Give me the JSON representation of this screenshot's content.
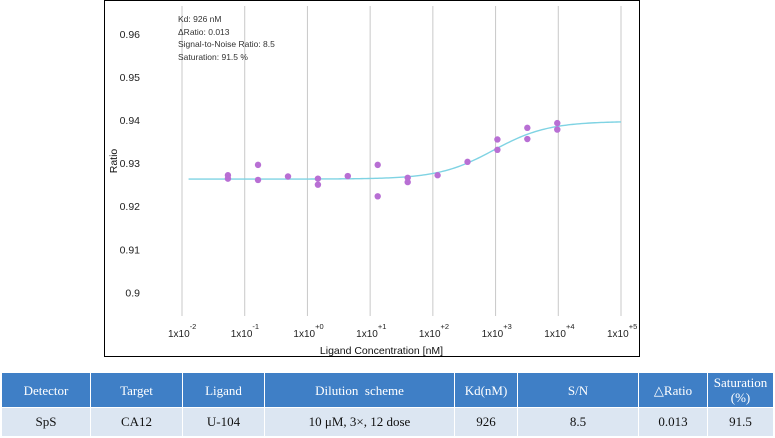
{
  "chart_data": {
    "type": "scatter",
    "xlabel": "Ligand Concentration [nM]",
    "ylabel": "Ratio",
    "x_scale": "log",
    "xlim": [
      0.01,
      100000
    ],
    "ylim": [
      0.8945,
      0.9665
    ],
    "x_ticks": [
      {
        "value": 0.01,
        "base": "1x10",
        "exp": "-2"
      },
      {
        "value": 0.1,
        "base": "1x10",
        "exp": "-1"
      },
      {
        "value": 1,
        "base": "1x10",
        "exp": "+0"
      },
      {
        "value": 10,
        "base": "1x10",
        "exp": "+1"
      },
      {
        "value": 100,
        "base": "1x10",
        "exp": "+2"
      },
      {
        "value": 1000,
        "base": "1x10",
        "exp": "+3"
      },
      {
        "value": 10000,
        "base": "1x10",
        "exp": "+4"
      },
      {
        "value": 100000,
        "base": "1x10",
        "exp": "+5"
      }
    ],
    "y_ticks": [
      "0.96",
      "0.95",
      "0.94",
      "0.93",
      "0.92",
      "0.91",
      "0.9"
    ],
    "grid": "vertical",
    "annotations": [
      "Kd: 926 nM",
      "ΔRatio: 0.013",
      "Signal-to-Noise Ratio: 8.5",
      "Saturation: 91.5 %"
    ],
    "fit_curve": {
      "bottom": 0.9263,
      "top": 0.9397,
      "kd": 926,
      "color": "#7fd3e3"
    },
    "point_color": "#b86fd4",
    "points": [
      {
        "x": 0.054,
        "y": 0.9272
      },
      {
        "x": 0.054,
        "y": 0.9264
      },
      {
        "x": 0.163,
        "y": 0.9296
      },
      {
        "x": 0.163,
        "y": 0.9261
      },
      {
        "x": 0.49,
        "y": 0.9269
      },
      {
        "x": 1.47,
        "y": 0.9264
      },
      {
        "x": 1.47,
        "y": 0.925
      },
      {
        "x": 4.4,
        "y": 0.927
      },
      {
        "x": 13.2,
        "y": 0.9296
      },
      {
        "x": 13.2,
        "y": 0.9223
      },
      {
        "x": 39.7,
        "y": 0.9266
      },
      {
        "x": 39.7,
        "y": 0.9256
      },
      {
        "x": 119,
        "y": 0.9272
      },
      {
        "x": 357,
        "y": 0.9303
      },
      {
        "x": 1070,
        "y": 0.9355
      },
      {
        "x": 1070,
        "y": 0.9331
      },
      {
        "x": 3210,
        "y": 0.9382
      },
      {
        "x": 3210,
        "y": 0.9356
      },
      {
        "x": 9640,
        "y": 0.9393
      },
      {
        "x": 9640,
        "y": 0.9378
      }
    ]
  },
  "table": {
    "headers": [
      "Detector",
      "Target",
      "Ligand",
      "Dilution  scheme",
      "Kd(nM)",
      "S/N",
      "△Ratio",
      "Saturation (%)"
    ],
    "row": [
      "SpS",
      "CA12",
      "U-104",
      "10 μM, 3×, 12 dose",
      "926",
      "8.5",
      "0.013",
      "91.5"
    ]
  }
}
